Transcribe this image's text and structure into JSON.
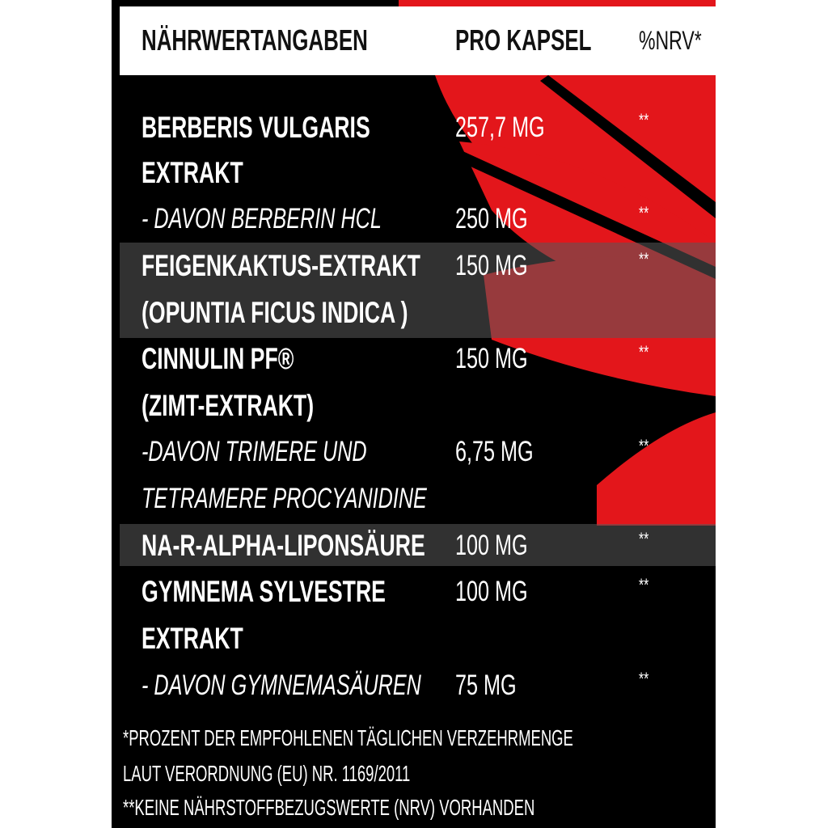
{
  "header": {
    "col_name": "NÄHRWERTANGABEN",
    "col_amount": "PRO KAPSEL",
    "col_nrv": "%NRV*"
  },
  "rows": [
    {
      "name": "BERBERIS VULGARIS",
      "amount": "257,7 MG",
      "nrv": "**"
    },
    {
      "name": "EXTRAKT"
    },
    {
      "name": "- DAVON BERBERIN HCL",
      "amount": "250  MG",
      "nrv": "**"
    },
    {
      "name": "FEIGENKAKTUS-EXTRAKT",
      "amount": "150 MG",
      "nrv": "**"
    },
    {
      "name": "(OPUNTIA FICUS INDICA )"
    },
    {
      "name": "CINNULIN PF®",
      "amount": "150 MG",
      "nrv": "**"
    },
    {
      "name": "(ZIMT-EXTRAKT)"
    },
    {
      "name": "-DAVON TRIMERE UND",
      "amount": "6,75 MG",
      "nrv": "**"
    },
    {
      "name": "TETRAMERE PROCYANIDINE"
    },
    {
      "name": "NA-R-ALPHA-LIPONSÄURE",
      "amount": "100 MG",
      "nrv": "**"
    },
    {
      "name": "GYMNEMA SYLVESTRE",
      "amount": "100 MG",
      "nrv": "**"
    },
    {
      "name": "EXTRAKT"
    },
    {
      "name": "- DAVON GYMNEMASÄUREN",
      "amount": "75 MG",
      "nrv": "**"
    }
  ],
  "footnotes": [
    "*PROZENT DER EMPFOHLENEN TÄGLICHEN VERZEHRMENGE",
    "LAUT VERORDNUNG (EU) NR. 1169/2011",
    "**KEINE NÄHRSTOFFBEZUGSWERTE (NRV) VORHANDEN"
  ],
  "colors": {
    "background": "#000000",
    "accent": "#e3161b",
    "header_bg": "#ffffff"
  }
}
